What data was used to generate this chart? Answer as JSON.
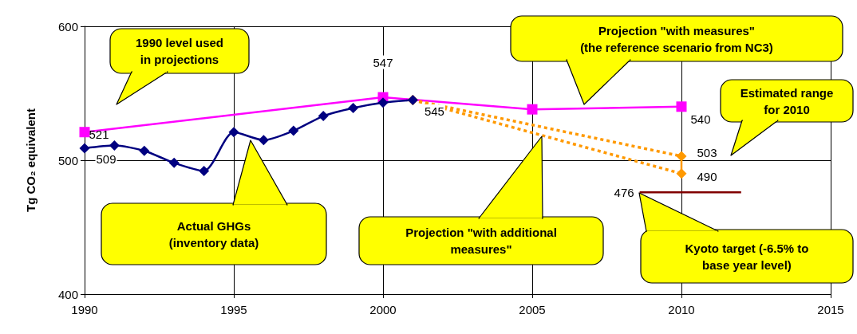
{
  "chart_data": {
    "type": "line",
    "ylabel": "Tg CO₂ equivalent",
    "xlim": [
      1990,
      2015
    ],
    "xticks": [
      1990,
      1995,
      2000,
      2005,
      2010,
      2015
    ],
    "ylim": [
      400,
      600
    ],
    "yticks": [
      400,
      500,
      600
    ],
    "grid": true,
    "series": [
      {
        "color": "#000080",
        "marker": "diamond",
        "line_style": "solid",
        "x": [
          1990,
          1991,
          1992,
          1993,
          1994,
          1995,
          1996,
          1997,
          1998,
          1999,
          2000,
          2001
        ],
        "values": [
          509,
          511,
          507,
          498,
          492,
          521,
          515,
          522,
          533,
          539,
          543,
          545
        ],
        "value_labels": [
          "509",
          null,
          null,
          null,
          null,
          null,
          null,
          null,
          null,
          null,
          null,
          "545"
        ]
      },
      {
        "color": "#ff00ff",
        "marker": "square",
        "line_style": "solid",
        "x": [
          1990,
          2000,
          2005,
          2010
        ],
        "values": [
          521,
          547,
          538,
          540
        ],
        "value_labels": [
          "521",
          "547",
          null,
          "540"
        ]
      },
      {
        "color": "#ff9900",
        "marker": "diamond",
        "line_style": "dotted",
        "x": [
          2001,
          2010
        ],
        "values": [
          545,
          503
        ],
        "value_labels": [
          null,
          "503"
        ]
      },
      {
        "color": "#ff9900",
        "marker": "diamond",
        "line_style": "dotted",
        "x": [
          2001,
          2010
        ],
        "values": [
          545,
          490
        ],
        "value_labels": [
          null,
          "490"
        ]
      },
      {
        "color": "#ff9900",
        "marker": "none",
        "line_style": "solid",
        "x": [
          2010,
          2010
        ],
        "values": [
          503,
          490
        ]
      },
      {
        "color": "#800000",
        "marker": "none",
        "line_style": "solid",
        "x": [
          2008.6,
          2012
        ],
        "values": [
          476,
          476
        ],
        "value_labels": [
          "476",
          null
        ]
      }
    ],
    "annotations": [
      "1990 level used\nin projections",
      "Actual GHGs\n(inventory data)",
      "Projection \"with additional\nmeasures\"",
      "Projection \"with measures\"\n(the reference scenario from NC3)",
      "Estimated range\nfor 2010",
      "Kyoto target (-6.5% to\nbase year level)"
    ]
  }
}
